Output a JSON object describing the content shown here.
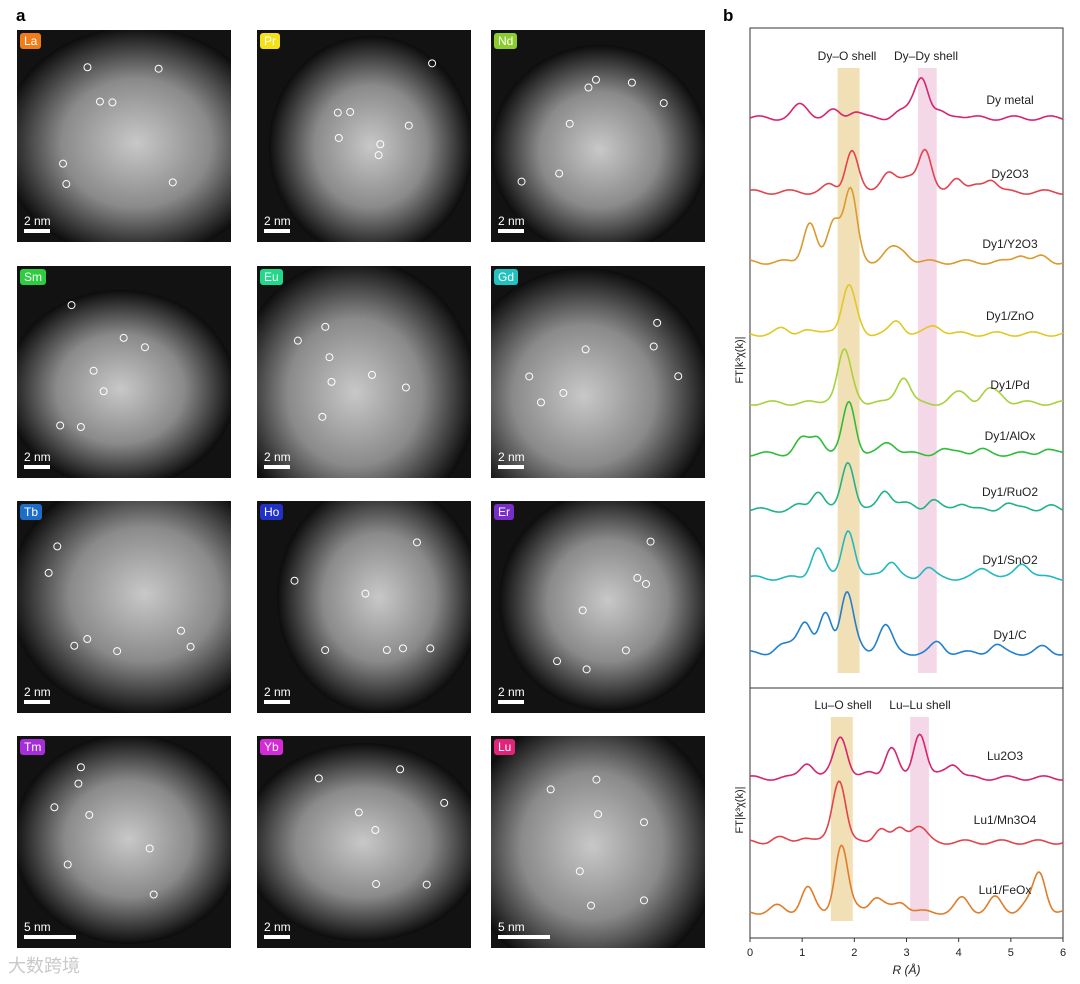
{
  "panel_a_label": "a",
  "panel_b_label": "b",
  "tiles": [
    {
      "element": "La",
      "color": "#f07c1a",
      "scale": "2 nm"
    },
    {
      "element": "Pr",
      "color": "#f3e11a",
      "scale": "2 nm"
    },
    {
      "element": "Nd",
      "color": "#8ccc2e",
      "scale": "2 nm"
    },
    {
      "element": "Sm",
      "color": "#2ecc40",
      "scale": "2 nm"
    },
    {
      "element": "Eu",
      "color": "#24d88a",
      "scale": "2 nm"
    },
    {
      "element": "Gd",
      "color": "#22c2c0",
      "scale": "2 nm"
    },
    {
      "element": "Tb",
      "color": "#1e6ec8",
      "scale": "2 nm"
    },
    {
      "element": "Ho",
      "color": "#2232c8",
      "scale": "2 nm"
    },
    {
      "element": "Er",
      "color": "#7a2ec8",
      "scale": "2 nm"
    },
    {
      "element": "Tm",
      "color": "#a52ed8",
      "scale": "5 nm"
    },
    {
      "element": "Yb",
      "color": "#d62ad8",
      "scale": "2 nm"
    },
    {
      "element": "Lu",
      "color": "#e0247a",
      "scale": "5 nm"
    }
  ],
  "chart_data": {
    "type": "line",
    "xlabel": "R (Å)",
    "ylabel_top": "FT|k³χ(k)|",
    "ylabel_bottom": "FT|k³χ(k)|",
    "xlim": [
      0,
      6
    ],
    "xticks": [
      0,
      1,
      2,
      3,
      4,
      5,
      6
    ],
    "top_shell_labels": [
      "Dy–O shell",
      "Dy–Dy shell"
    ],
    "bottom_shell_labels": [
      "Lu–O shell",
      "Lu–Lu shell"
    ],
    "top_bands": [
      [
        1.68,
        2.1
      ],
      [
        3.22,
        3.58
      ]
    ],
    "bottom_bands": [
      [
        1.55,
        1.97
      ],
      [
        3.07,
        3.43
      ]
    ],
    "top_series": [
      {
        "name": "Dy metal",
        "color": "#d6246e",
        "peaks": [
          [
            3.3,
            0.55
          ],
          [
            1.0,
            0.06
          ],
          [
            1.6,
            0.1
          ]
        ]
      },
      {
        "name": "Dy2O3",
        "color": "#e2434d",
        "peaks": [
          [
            1.95,
            0.6
          ],
          [
            3.35,
            0.6
          ],
          [
            2.65,
            0.25
          ],
          [
            3.95,
            0.22
          ]
        ]
      },
      {
        "name": "Dy1/Y2O3",
        "color": "#d99a2e",
        "peaks": [
          [
            1.93,
            1.0
          ],
          [
            1.15,
            0.5
          ],
          [
            1.6,
            0.55
          ],
          [
            2.7,
            0.1
          ]
        ]
      },
      {
        "name": "Dy1/ZnO",
        "color": "#e2c822",
        "peaks": [
          [
            1.88,
            0.6
          ],
          [
            2.8,
            0.12
          ]
        ]
      },
      {
        "name": "Dy1/Pd",
        "color": "#a6d23a",
        "peaks": [
          [
            1.8,
            0.7
          ],
          [
            2.95,
            0.35
          ]
        ]
      },
      {
        "name": "Dy1/AlOx",
        "color": "#2ebd3a",
        "peaks": [
          [
            1.9,
            0.75
          ],
          [
            1.3,
            0.25
          ],
          [
            2.6,
            0.12
          ]
        ]
      },
      {
        "name": "Dy1/RuO2",
        "color": "#20b38a",
        "peaks": [
          [
            1.88,
            0.7
          ],
          [
            1.3,
            0.28
          ],
          [
            2.6,
            0.2
          ],
          [
            3.5,
            0.15
          ]
        ]
      },
      {
        "name": "Dy1/SnO2",
        "color": "#22b8c0",
        "peaks": [
          [
            1.88,
            0.7
          ],
          [
            1.3,
            0.3
          ],
          [
            2.7,
            0.22
          ],
          [
            3.4,
            0.15
          ]
        ]
      },
      {
        "name": "Dy1/C",
        "color": "#2080d0",
        "peaks": [
          [
            1.85,
            0.85
          ],
          [
            1.45,
            0.55
          ],
          [
            1.05,
            0.4
          ],
          [
            2.6,
            0.25
          ],
          [
            3.6,
            0.15
          ]
        ]
      }
    ],
    "bottom_series": [
      {
        "name": "Lu2O3",
        "color": "#d6246e",
        "peaks": [
          [
            1.75,
            0.55
          ],
          [
            3.25,
            0.65
          ],
          [
            2.7,
            0.3
          ],
          [
            3.9,
            0.2
          ]
        ]
      },
      {
        "name": "Lu1/Mn3O4",
        "color": "#e2434d",
        "peaks": [
          [
            1.72,
            0.8
          ],
          [
            2.5,
            0.2
          ],
          [
            3.3,
            0.12
          ]
        ]
      },
      {
        "name": "Lu1/FeOx",
        "color": "#e07d2a",
        "peaks": [
          [
            1.75,
            0.95
          ],
          [
            1.1,
            0.35
          ],
          [
            5.55,
            0.55
          ],
          [
            2.4,
            0.2
          ],
          [
            2.9,
            0.15
          ]
        ]
      }
    ]
  },
  "watermark": "大数跨境"
}
